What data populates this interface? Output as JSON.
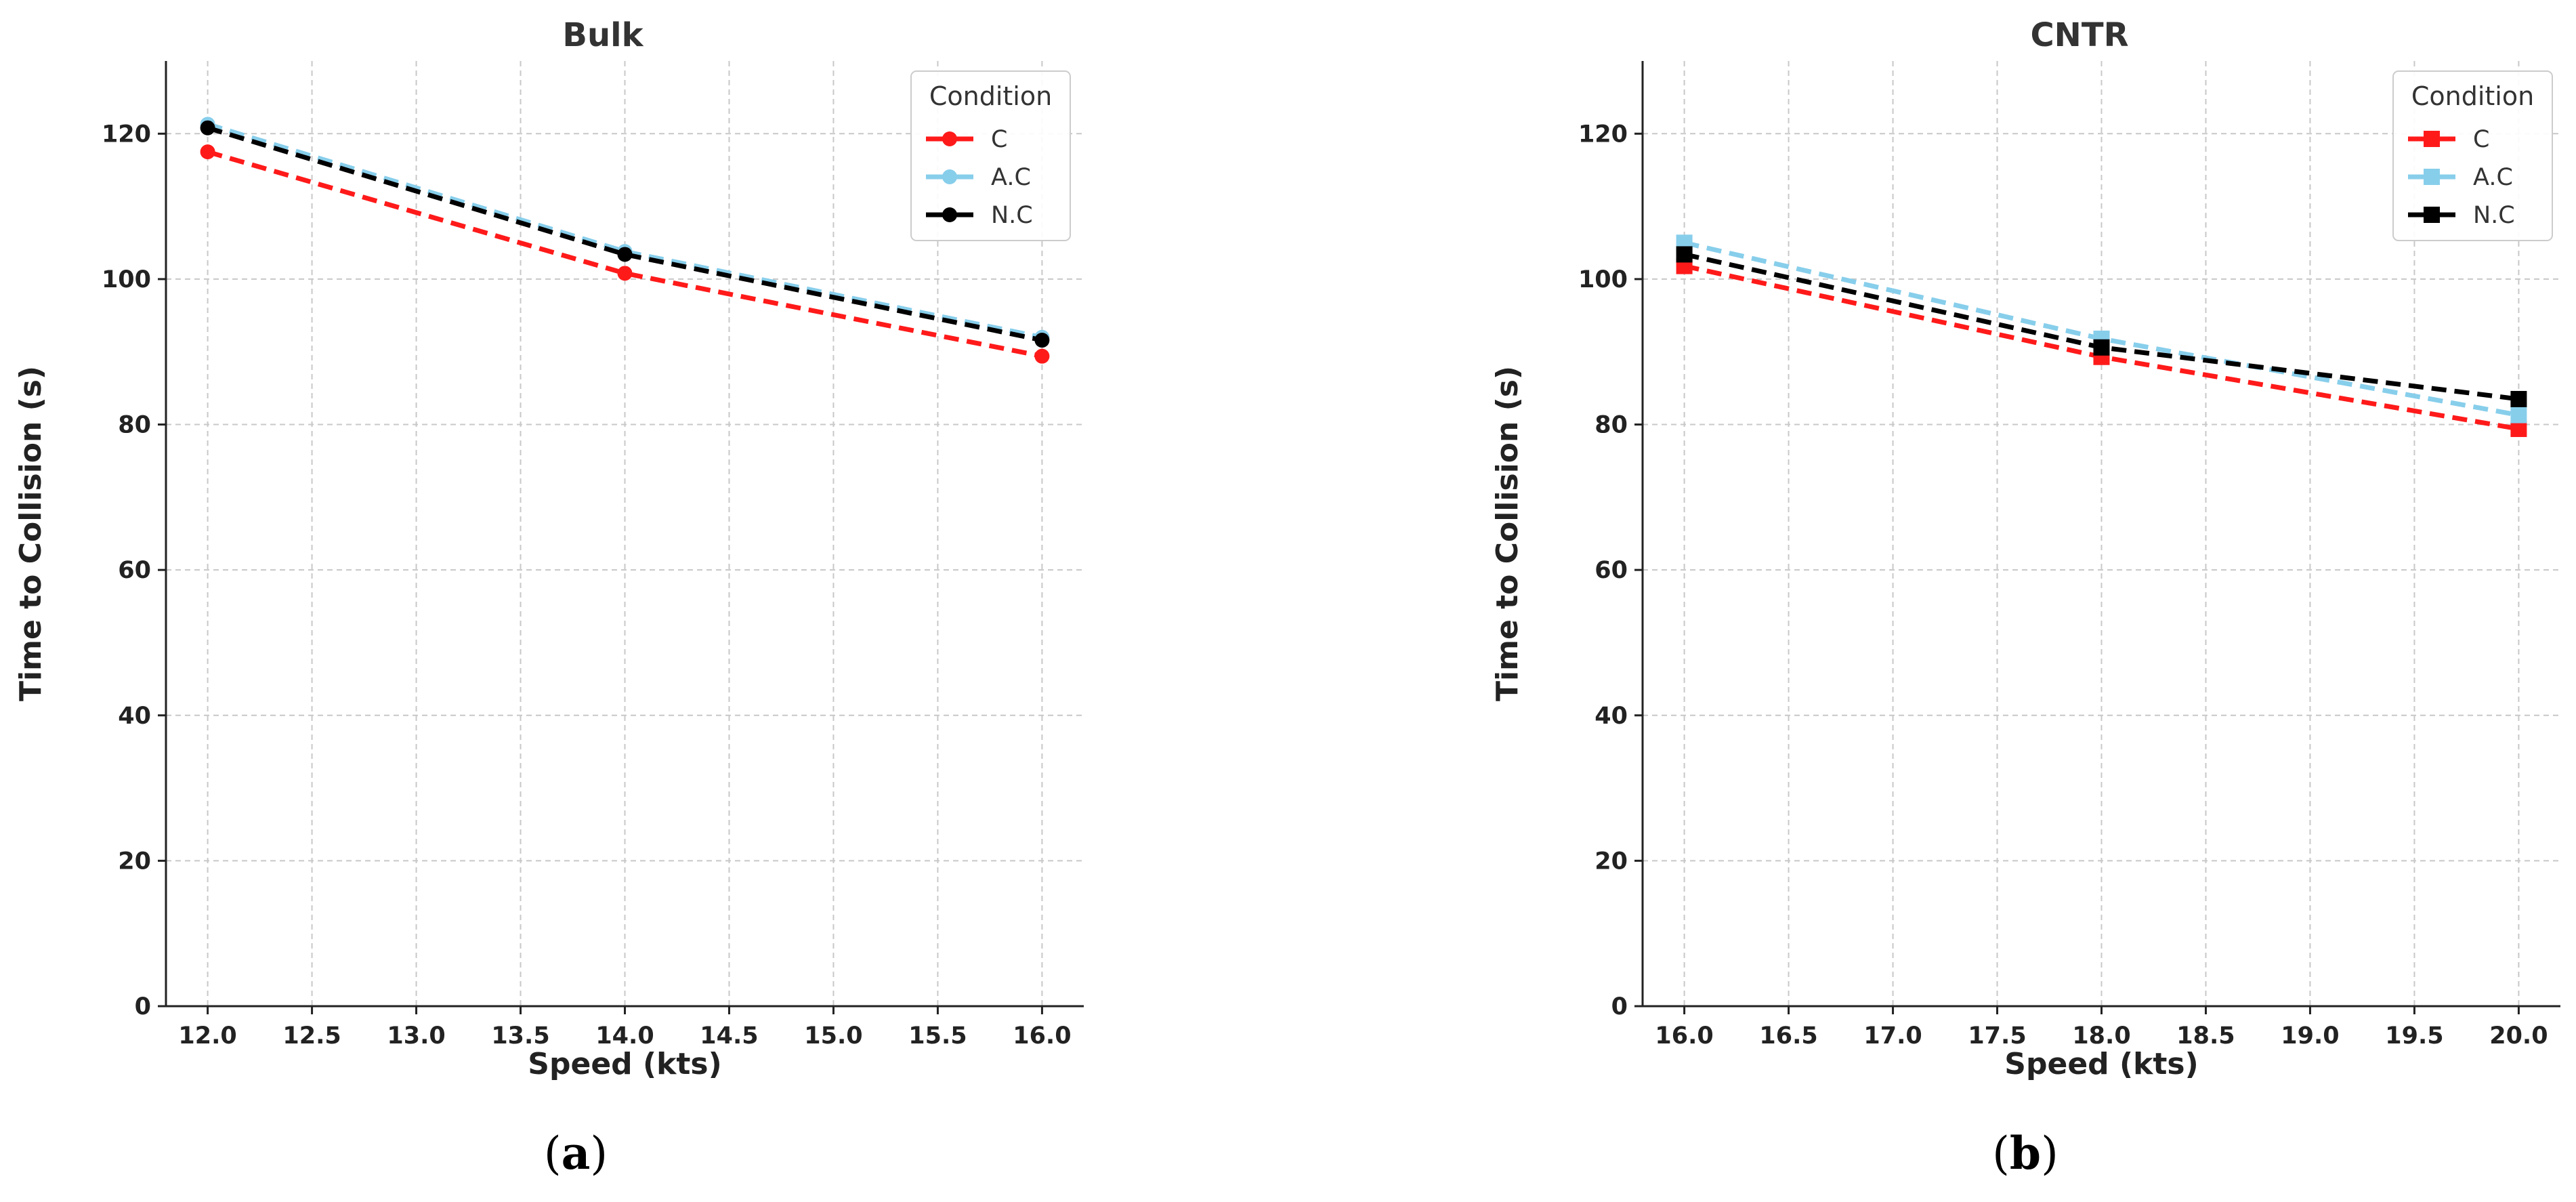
{
  "figure": {
    "panel_captions": [
      {
        "open": "(",
        "letter": "a",
        "close": ")"
      },
      {
        "open": "(",
        "letter": "b",
        "close": ")"
      }
    ]
  },
  "chart_data": [
    {
      "type": "line",
      "title": "Bulk",
      "xlabel": "Speed (kts)",
      "ylabel": "Time to Collision (s)",
      "x": [
        12.0,
        14.0,
        16.0
      ],
      "xlim": [
        11.8,
        16.2
      ],
      "ylim": [
        0,
        130
      ],
      "xticks": [
        "12.0",
        "12.5",
        "13.0",
        "13.5",
        "14.0",
        "14.5",
        "15.0",
        "15.5",
        "16.0"
      ],
      "yticks": [
        "0",
        "20",
        "40",
        "60",
        "80",
        "100",
        "120"
      ],
      "grid": true,
      "line_style": "dashed",
      "marker": "circle",
      "legend": {
        "title": "Condition",
        "placement": "top-right"
      },
      "series": [
        {
          "name": "C",
          "color": "#ff1a1a",
          "values": [
            117.5,
            100.8,
            89.4
          ]
        },
        {
          "name": "A.C",
          "color": "#87ceeb",
          "values": [
            121.3,
            103.8,
            92.0
          ]
        },
        {
          "name": "N.C",
          "color": "#000000",
          "values": [
            120.8,
            103.4,
            91.6
          ]
        }
      ]
    },
    {
      "type": "line",
      "title": "CNTR",
      "xlabel": "Speed (kts)",
      "ylabel": "Time to Collision (s)",
      "x": [
        16.0,
        18.0,
        20.0
      ],
      "xlim": [
        15.8,
        20.2
      ],
      "ylim": [
        0,
        130
      ],
      "xticks": [
        "16.0",
        "16.5",
        "17.0",
        "17.5",
        "18.0",
        "18.5",
        "19.0",
        "19.5",
        "20.0"
      ],
      "yticks": [
        "0",
        "20",
        "40",
        "60",
        "80",
        "100",
        "120"
      ],
      "grid": true,
      "line_style": "dashed",
      "marker": "square",
      "legend": {
        "title": "Condition",
        "placement": "top-right"
      },
      "series": [
        {
          "name": "C",
          "color": "#ff1a1a",
          "values": [
            101.8,
            89.3,
            79.4
          ]
        },
        {
          "name": "A.C",
          "color": "#87ceeb",
          "values": [
            105.0,
            91.8,
            81.3
          ]
        },
        {
          "name": "N.C",
          "color": "#000000",
          "values": [
            103.4,
            90.6,
            83.5
          ]
        }
      ]
    }
  ]
}
